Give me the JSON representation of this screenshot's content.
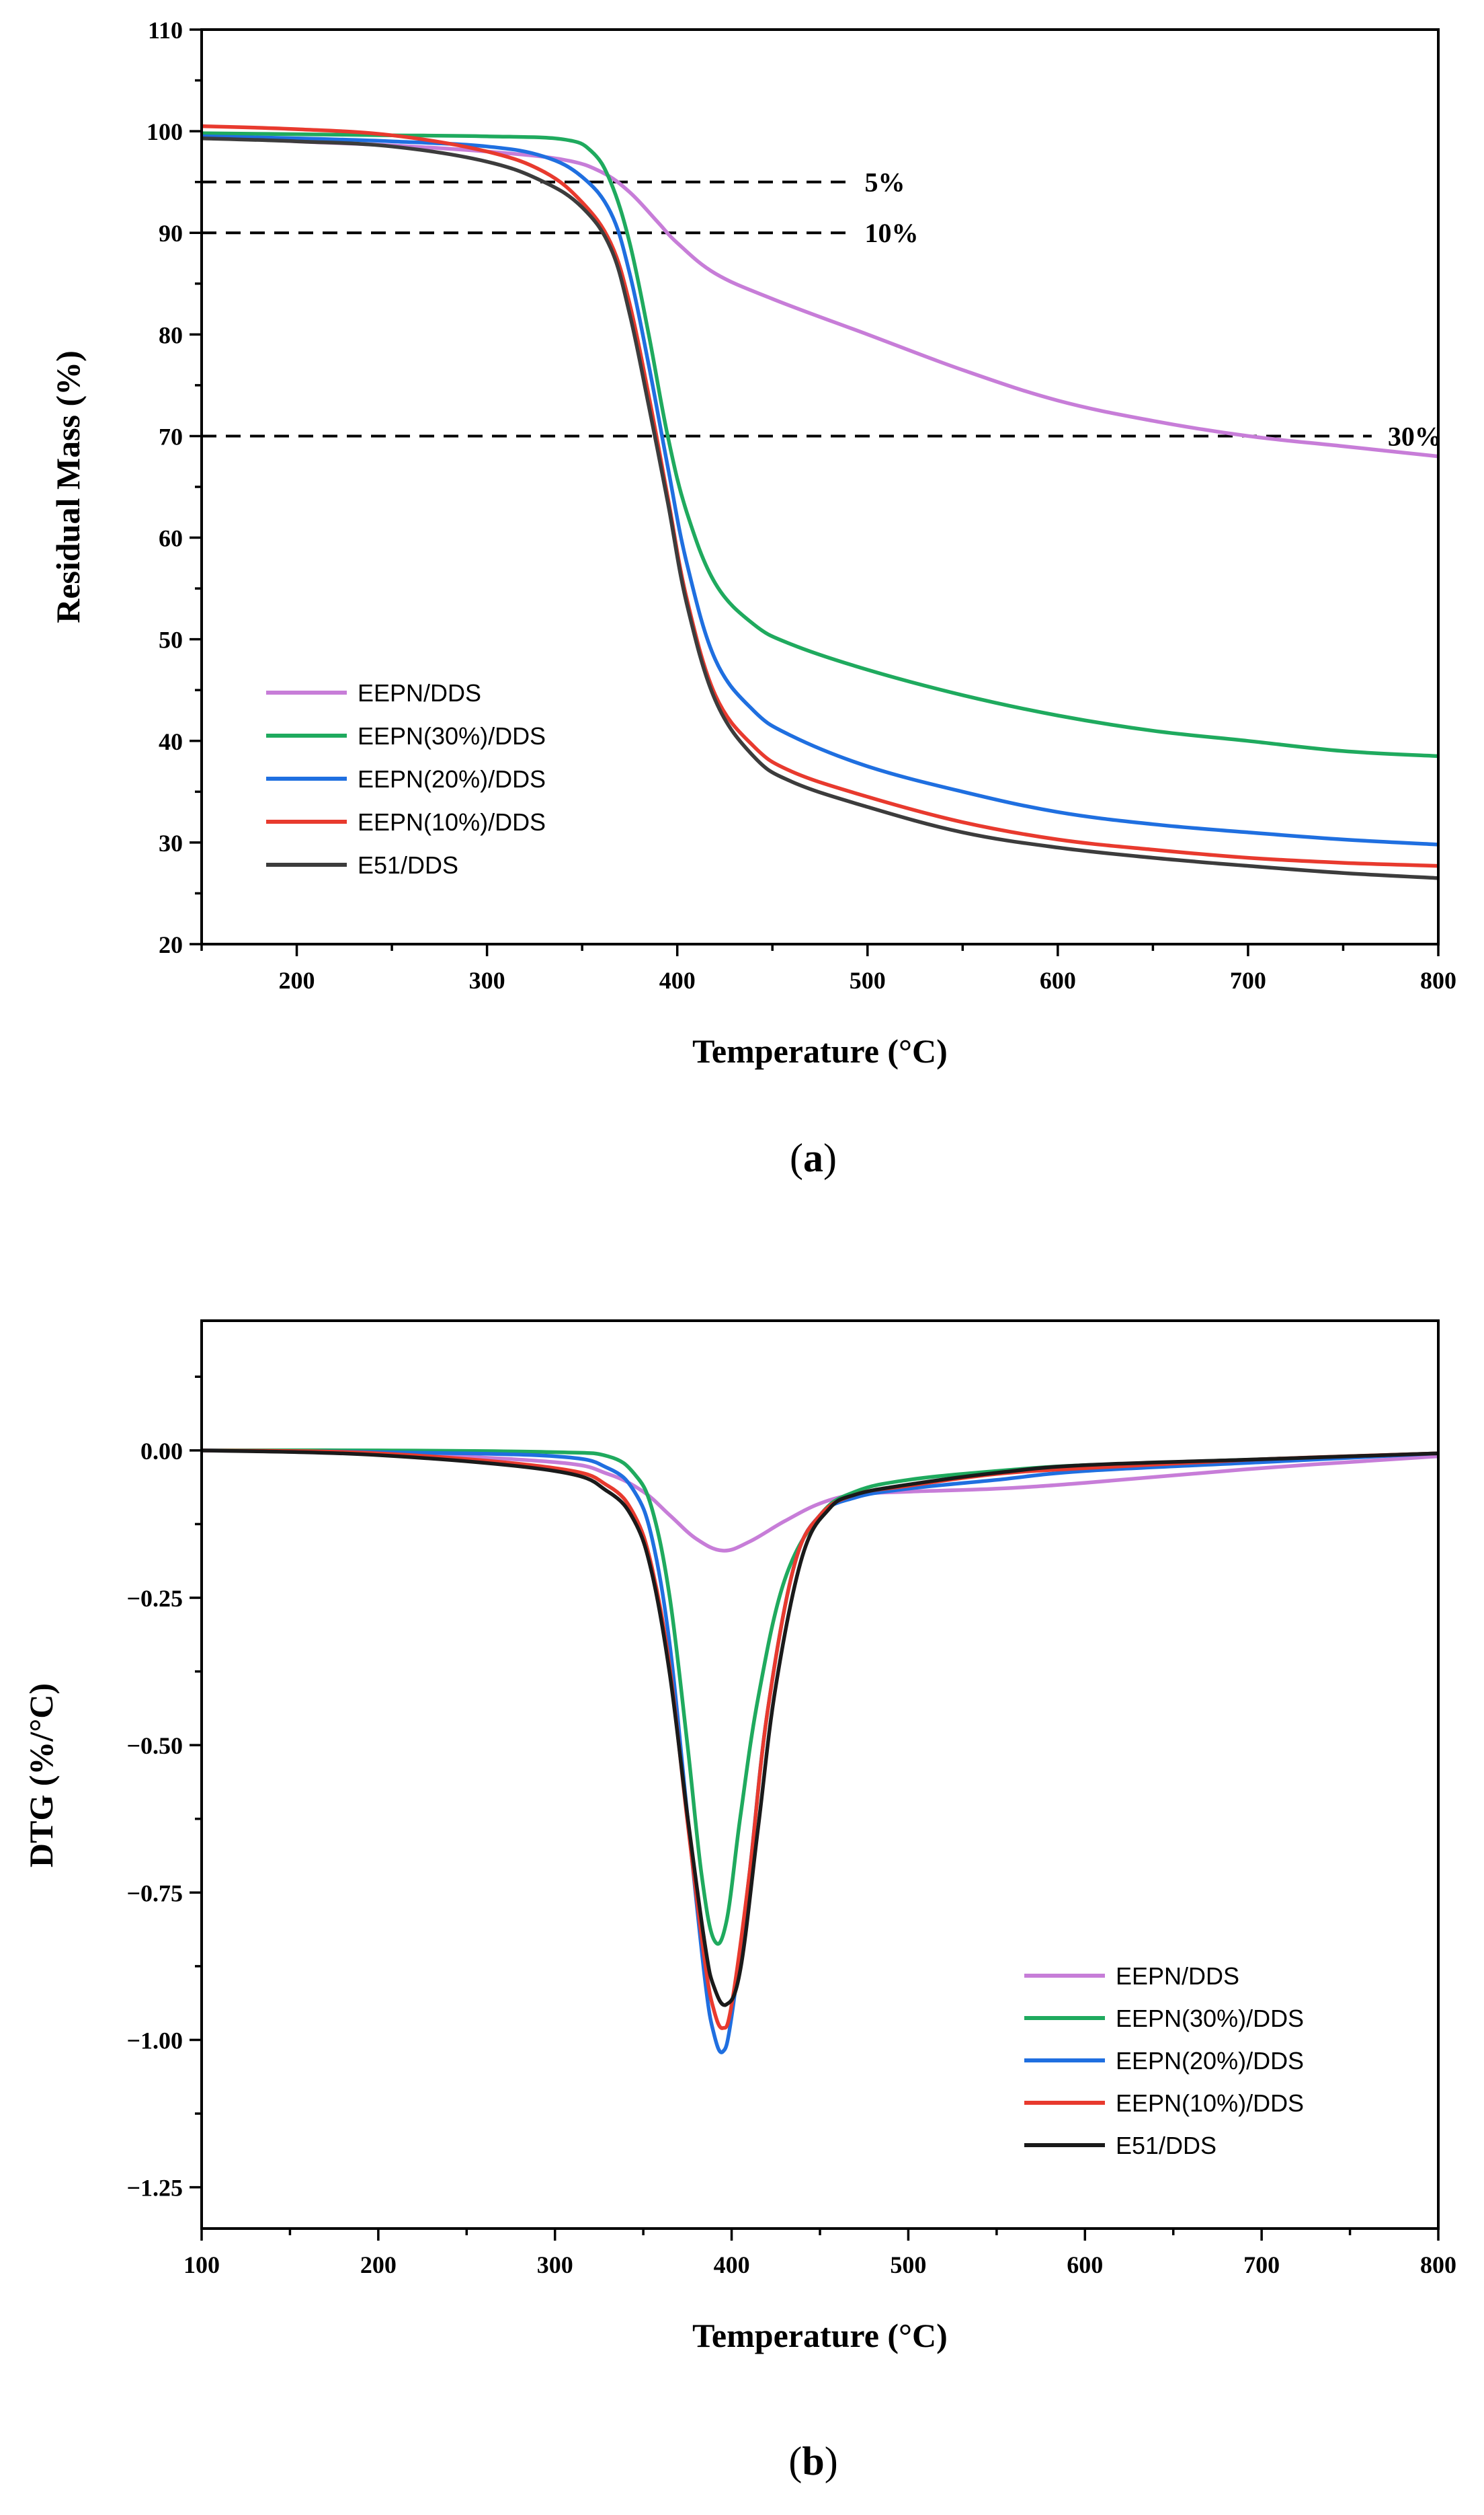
{
  "chart_data": [
    {
      "type": "line",
      "panel_label": "a",
      "xlabel": "Temperature (°C)",
      "ylabel": "Residual Mass (%)",
      "xlim": [
        150,
        800
      ],
      "ylim": [
        20,
        110
      ],
      "xticks": [
        200,
        300,
        400,
        500,
        600,
        700,
        800
      ],
      "yticks": [
        20,
        30,
        40,
        50,
        60,
        70,
        80,
        90,
        100,
        110
      ],
      "reference_lines": [
        {
          "y": 95,
          "x_end": 490,
          "label": "5%"
        },
        {
          "y": 90,
          "x_end": 490,
          "label": "10%"
        },
        {
          "y": 70,
          "x_end": 765,
          "label": "30%"
        }
      ],
      "legend_position": "lower-left",
      "series": [
        {
          "name": "EEPN/DDS",
          "color": "#c77dd8",
          "x": [
            150,
            200,
            250,
            300,
            340,
            360,
            375,
            390,
            400,
            420,
            450,
            500,
            550,
            600,
            650,
            700,
            750,
            800
          ],
          "y": [
            99.5,
            99.0,
            98.6,
            98.0,
            97.2,
            96.0,
            94.0,
            91.0,
            89.0,
            86.0,
            83.5,
            80.0,
            76.5,
            73.5,
            71.5,
            70.0,
            69.0,
            68.0
          ]
        },
        {
          "name": "EEPN(30%)/DDS",
          "color": "#1faa5e",
          "x": [
            150,
            200,
            250,
            300,
            340,
            355,
            365,
            375,
            385,
            395,
            405,
            420,
            440,
            460,
            500,
            550,
            600,
            650,
            700,
            750,
            800
          ],
          "y": [
            99.8,
            99.7,
            99.6,
            99.5,
            99.2,
            98.0,
            95.0,
            89.0,
            80.0,
            70.0,
            62.5,
            55.5,
            51.5,
            49.5,
            47.0,
            44.5,
            42.5,
            41.0,
            40.0,
            39.0,
            38.5
          ]
        },
        {
          "name": "EEPN(20%)/DDS",
          "color": "#1f6fe0",
          "x": [
            150,
            200,
            250,
            300,
            330,
            350,
            365,
            375,
            385,
            395,
            405,
            420,
            440,
            460,
            500,
            550,
            600,
            650,
            700,
            750,
            800
          ],
          "y": [
            99.5,
            99.3,
            99.0,
            98.5,
            97.5,
            95.5,
            92.0,
            86.0,
            77.0,
            67.0,
            57.5,
            48.0,
            43.0,
            40.5,
            37.5,
            35.0,
            33.0,
            31.8,
            31.0,
            30.3,
            29.8
          ]
        },
        {
          "name": "EEPN(10%)/DDS",
          "color": "#e83a2e",
          "x": [
            150,
            200,
            250,
            300,
            330,
            350,
            365,
            375,
            385,
            395,
            405,
            420,
            440,
            460,
            500,
            550,
            600,
            650,
            700,
            750,
            800
          ],
          "y": [
            100.5,
            100.2,
            99.6,
            98.0,
            96.0,
            93.0,
            89.0,
            83.0,
            74.0,
            64.0,
            54.0,
            44.5,
            39.5,
            37.0,
            34.5,
            32.0,
            30.3,
            29.3,
            28.5,
            28.0,
            27.7
          ]
        },
        {
          "name": "E51/DDS",
          "color": "#3c3c3c",
          "x": [
            150,
            200,
            250,
            300,
            330,
            350,
            365,
            375,
            385,
            395,
            405,
            420,
            440,
            460,
            500,
            550,
            600,
            650,
            700,
            750,
            800
          ],
          "y": [
            99.3,
            99.0,
            98.5,
            97.0,
            95.0,
            92.5,
            88.5,
            82.0,
            73.0,
            63.5,
            53.5,
            44.0,
            38.5,
            36.0,
            33.5,
            31.0,
            29.5,
            28.5,
            27.7,
            27.0,
            26.5
          ]
        }
      ]
    },
    {
      "type": "line",
      "panel_label": "b",
      "xlabel": "Temperature (°C)",
      "ylabel": "DTG (%/°C)",
      "xlim": [
        100,
        800
      ],
      "ylim": [
        -1.32,
        0.22
      ],
      "xticks": [
        100,
        200,
        300,
        400,
        500,
        600,
        700,
        800
      ],
      "yticks": [
        0.0,
        -0.25,
        -0.5,
        -0.75,
        -1.0,
        -1.25
      ],
      "ytick_labels": [
        "0.00",
        "−0.25",
        "−0.50",
        "−0.75",
        "−1.00",
        "−1.25"
      ],
      "legend_position": "lower-right",
      "series": [
        {
          "name": "EEPN/DDS",
          "color": "#c77dd8",
          "x": [
            100,
            200,
            300,
            330,
            350,
            365,
            380,
            395,
            410,
            430,
            450,
            470,
            500,
            550,
            600,
            700,
            800
          ],
          "y": [
            0.0,
            -0.005,
            -0.02,
            -0.04,
            -0.07,
            -0.11,
            -0.15,
            -0.17,
            -0.155,
            -0.12,
            -0.09,
            -0.075,
            -0.07,
            -0.065,
            -0.055,
            -0.03,
            -0.01
          ]
        },
        {
          "name": "EEPN(30%)/DDS",
          "color": "#1faa5e",
          "x": [
            100,
            200,
            300,
            330,
            345,
            355,
            365,
            375,
            383,
            390,
            397,
            405,
            415,
            430,
            450,
            470,
            500,
            550,
            600,
            700,
            800
          ],
          "y": [
            0.0,
            0.0,
            -0.003,
            -0.01,
            -0.04,
            -0.1,
            -0.25,
            -0.5,
            -0.72,
            -0.83,
            -0.8,
            -0.62,
            -0.42,
            -0.22,
            -0.11,
            -0.07,
            -0.05,
            -0.035,
            -0.025,
            -0.015,
            -0.005
          ]
        },
        {
          "name": "EEPN(20%)/DDS",
          "color": "#1f6fe0",
          "x": [
            100,
            200,
            300,
            330,
            345,
            355,
            365,
            375,
            385,
            390,
            395,
            400,
            410,
            420,
            435,
            450,
            470,
            500,
            550,
            600,
            700,
            800
          ],
          "y": [
            0.0,
            -0.003,
            -0.01,
            -0.03,
            -0.07,
            -0.15,
            -0.33,
            -0.62,
            -0.9,
            -0.99,
            -1.02,
            -0.96,
            -0.72,
            -0.45,
            -0.2,
            -0.11,
            -0.08,
            -0.065,
            -0.05,
            -0.035,
            -0.02,
            -0.005
          ]
        },
        {
          "name": "EEPN(10%)/DDS",
          "color": "#e83a2e",
          "x": [
            100,
            200,
            300,
            330,
            345,
            355,
            365,
            375,
            385,
            390,
            395,
            400,
            410,
            420,
            435,
            450,
            470,
            500,
            550,
            600,
            700,
            800
          ],
          "y": [
            0.0,
            -0.005,
            -0.03,
            -0.06,
            -0.11,
            -0.2,
            -0.37,
            -0.63,
            -0.87,
            -0.95,
            -0.98,
            -0.94,
            -0.72,
            -0.45,
            -0.2,
            -0.11,
            -0.075,
            -0.06,
            -0.04,
            -0.03,
            -0.015,
            -0.005
          ]
        },
        {
          "name": "E51/DDS",
          "color": "#1a1a1a",
          "x": [
            100,
            200,
            300,
            330,
            345,
            355,
            365,
            375,
            385,
            390,
            397,
            405,
            415,
            425,
            440,
            455,
            470,
            500,
            550,
            600,
            700,
            800
          ],
          "y": [
            0.0,
            -0.008,
            -0.035,
            -0.07,
            -0.12,
            -0.21,
            -0.38,
            -0.62,
            -0.84,
            -0.91,
            -0.94,
            -0.88,
            -0.64,
            -0.4,
            -0.18,
            -0.1,
            -0.075,
            -0.058,
            -0.038,
            -0.025,
            -0.015,
            -0.005
          ]
        }
      ]
    }
  ]
}
